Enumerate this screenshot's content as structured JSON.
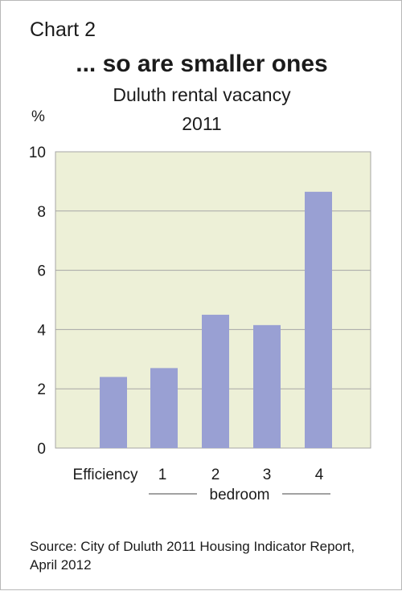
{
  "header": {
    "chart_number": "Chart 2",
    "title": "... so are smaller ones",
    "subtitle_line1": "Duluth rental vacancy",
    "subtitle_line2": "2011"
  },
  "chart_data": {
    "type": "bar",
    "categories": [
      "Efficiency",
      "1",
      "2",
      "3",
      "4"
    ],
    "values": [
      2.4,
      2.7,
      4.5,
      4.15,
      8.65
    ],
    "ylabel": "%",
    "ylim": [
      0,
      10
    ],
    "yticks": [
      "0",
      "2",
      "4",
      "6",
      "8",
      "10"
    ],
    "xgroup_label": "bedroom",
    "grid": true,
    "colors": {
      "bar": "#99a0d3",
      "plot_bg": "#edf0d7",
      "grid": "#a6a6a6"
    }
  },
  "footer": {
    "source": "Source: City of Duluth 2011 Housing Indicator Report, April 2012"
  }
}
